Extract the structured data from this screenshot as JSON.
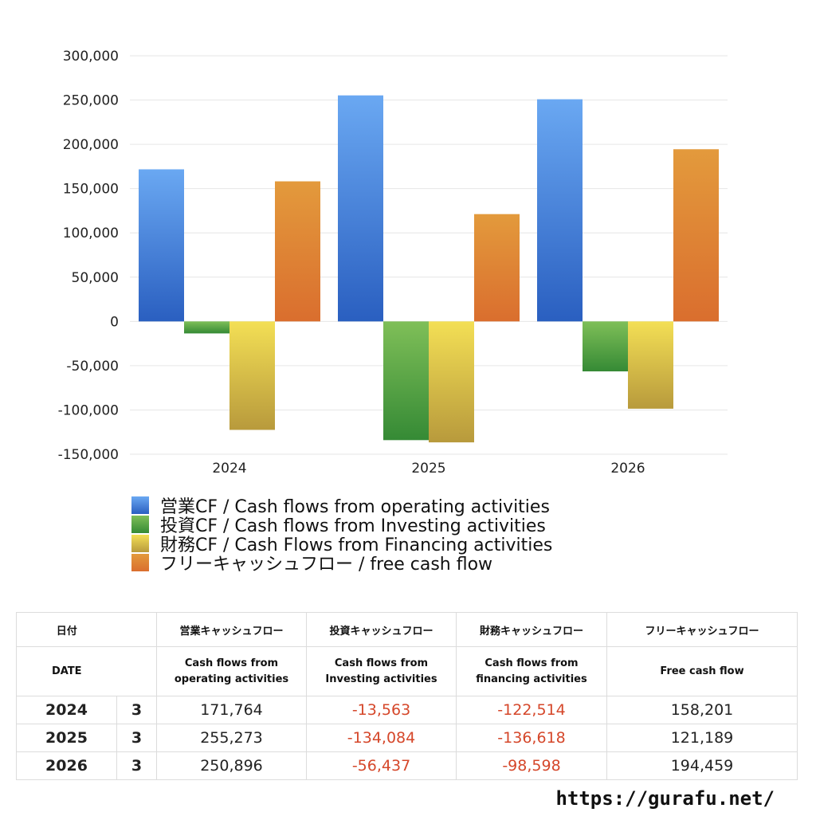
{
  "chart_data": {
    "type": "bar",
    "categories": [
      "2024",
      "2025",
      "2026"
    ],
    "series": [
      {
        "name": "営業CF / Cash flows from operating activities",
        "values": [
          171764,
          255273,
          250896
        ],
        "color_top": "#6aa8f2",
        "color_bottom": "#2a5fc0"
      },
      {
        "name": "投資CF / Cash flows from Investing activities",
        "values": [
          -13563,
          -134084,
          -56437
        ],
        "color_top": "#7fbf58",
        "color_bottom": "#358a35"
      },
      {
        "name": "財務CF / Cash Flows from Financing activities",
        "values": [
          -122514,
          -136618,
          -98598
        ],
        "color_top": "#f3df55",
        "color_bottom": "#b89a3c"
      },
      {
        "name": "フリーキャッシュフロー / free cash flow",
        "values": [
          158201,
          121189,
          194459
        ],
        "color_top": "#e39a3c",
        "color_bottom": "#da6e2e"
      }
    ],
    "ylim": [
      -150000,
      300000
    ],
    "yticks": [
      300000,
      250000,
      200000,
      150000,
      100000,
      50000,
      0,
      -50000,
      -100000,
      -150000
    ],
    "ytick_labels": [
      "300,000",
      "250,000",
      "200,000",
      "150,000",
      "100,000",
      "50,000",
      "0",
      "-50,000",
      "-100,000",
      "-150,000"
    ],
    "grid": true,
    "legend_position": "bottom"
  },
  "table": {
    "header_jp": {
      "date": "日付",
      "operating": "営業キャッシュフロー",
      "investing": "投資キャッシュフロー",
      "financing": "財務キャッシュフロー",
      "free": "フリーキャッシュフロー"
    },
    "header_en": {
      "date": "DATE",
      "operating_1": "Cash flows from",
      "operating_2": "operating activities",
      "investing_1": "Cash flows from",
      "investing_2": "Investing activities",
      "financing_1": "Cash flows from",
      "financing_2": "financing activities",
      "free": "Free cash flow"
    },
    "rows": [
      {
        "year": "2024",
        "month": "3",
        "operating": "171,764",
        "investing": "-13,563",
        "financing": "-122,514",
        "free": "158,201"
      },
      {
        "year": "2025",
        "month": "3",
        "operating": "255,273",
        "investing": "-134,084",
        "financing": "-136,618",
        "free": "121,189"
      },
      {
        "year": "2026",
        "month": "3",
        "operating": "250,896",
        "investing": "-56,437",
        "financing": "-98,598",
        "free": "194,459"
      }
    ]
  },
  "footer": {
    "site_url": "https://gurafu.net/"
  },
  "colors": {
    "negative_text": "#d5472a"
  }
}
